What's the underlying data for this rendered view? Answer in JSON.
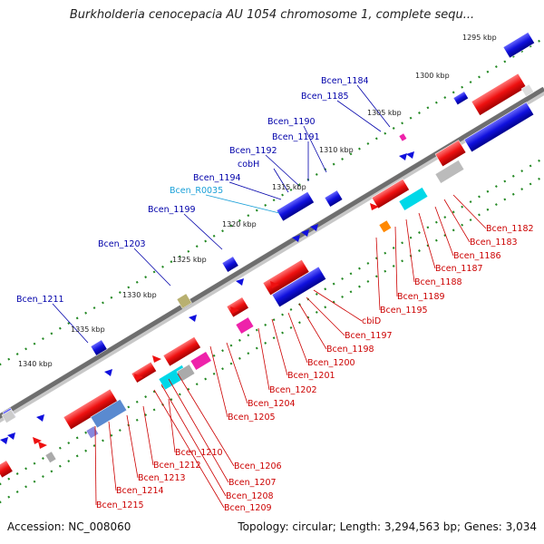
{
  "title": "Burkholderia cenocepacia AU 1054 chromosome 1, complete sequ...",
  "footer": {
    "accession": "Accession: NC_008060",
    "summary": "Topology: circular; Length: 3,294,563 bp; Genes: 3,034"
  },
  "scale_ticks": [
    "1295 kbp",
    "1300 kbp",
    "1305 kbp",
    "1310 kbp",
    "1315 kbp",
    "1320 kbp",
    "1325 kbp",
    "1330 kbp",
    "1335 kbp",
    "1340 kbp"
  ],
  "outer_labels": [
    {
      "text": "Bcen_1184",
      "color": "blue"
    },
    {
      "text": "Bcen_1185",
      "color": "blue"
    },
    {
      "text": "Bcen_1190",
      "color": "blue"
    },
    {
      "text": "Bcen_1191",
      "color": "blue"
    },
    {
      "text": "Bcen_1192",
      "color": "blue"
    },
    {
      "text": "cobH",
      "color": "blue"
    },
    {
      "text": "Bcen_1194",
      "color": "blue"
    },
    {
      "text": "Bcen_R0035",
      "color": "cyan"
    },
    {
      "text": "Bcen_1199",
      "color": "blue"
    },
    {
      "text": "Bcen_1203",
      "color": "blue"
    },
    {
      "text": "Bcen_1211",
      "color": "blue"
    }
  ],
  "inner_labels": [
    {
      "text": "Bcen_1182"
    },
    {
      "text": "Bcen_1183"
    },
    {
      "text": "Bcen_1186"
    },
    {
      "text": "Bcen_1187"
    },
    {
      "text": "Bcen_1188"
    },
    {
      "text": "Bcen_1189"
    },
    {
      "text": "Bcen_1195"
    },
    {
      "text": "cbiD"
    },
    {
      "text": "Bcen_1197"
    },
    {
      "text": "Bcen_1198"
    },
    {
      "text": "Bcen_1200"
    },
    {
      "text": "Bcen_1201"
    },
    {
      "text": "Bcen_1202"
    },
    {
      "text": "Bcen_1204"
    },
    {
      "text": "Bcen_1205"
    },
    {
      "text": "Bcen_1206"
    },
    {
      "text": "Bcen_1207"
    },
    {
      "text": "Bcen_1208"
    },
    {
      "text": "Bcen_1209"
    },
    {
      "text": "Bcen_1210"
    },
    {
      "text": "Bcen_1212"
    },
    {
      "text": "Bcen_1213"
    },
    {
      "text": "Bcen_1214"
    },
    {
      "text": "Bcen_1215"
    }
  ],
  "colors": {
    "forward_gene": "#1010dd",
    "reverse_gene": "#ee1010",
    "rna": "#00d8e8",
    "backbone": "#777777",
    "tick_dots": "#228822",
    "label_blue": "#0000aa",
    "label_cyan": "#1aa0d8",
    "label_red": "#cc0000"
  }
}
